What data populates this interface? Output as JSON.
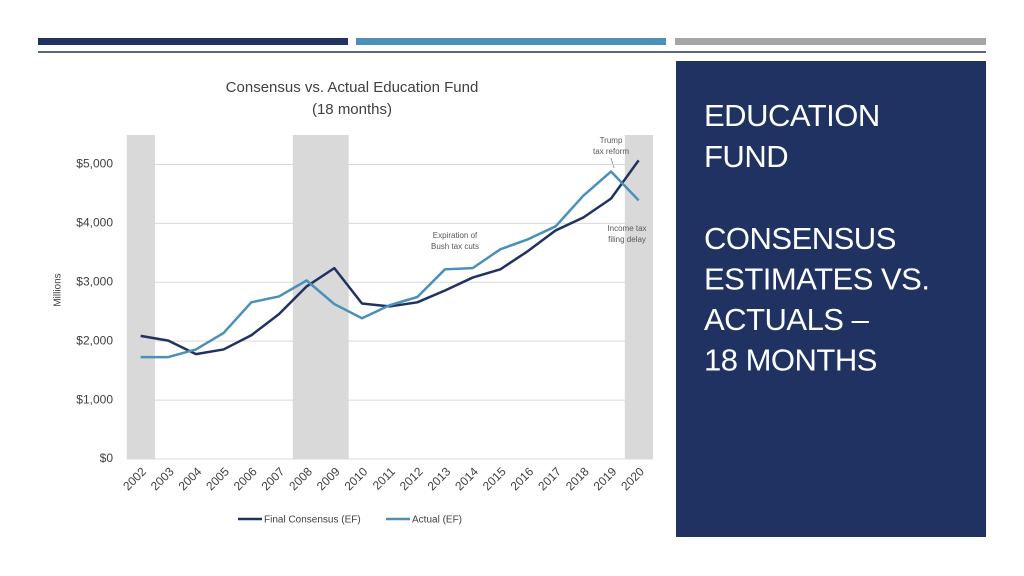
{
  "chart_data": {
    "type": "line",
    "title": "Consensus vs. Actual Education Fund",
    "subtitle": "(18 months)",
    "y_label": "Millions",
    "categories": [
      "2002",
      "2003",
      "2004",
      "2005",
      "2006",
      "2007",
      "2008",
      "2009",
      "2010",
      "2011",
      "2012",
      "2013",
      "2014",
      "2015",
      "2016",
      "2017",
      "2018",
      "2019",
      "2020"
    ],
    "series": [
      {
        "name": "Final Consensus (EF)",
        "color": "#1f3261",
        "values": [
          2090,
          2010,
          1780,
          1860,
          2100,
          2460,
          2930,
          3240,
          2640,
          2590,
          2660,
          2860,
          3080,
          3220,
          3530,
          3880,
          4100,
          4420,
          5070
        ]
      },
      {
        "name": "Actual (EF)",
        "color": "#4a90b8",
        "values": [
          1730,
          1730,
          1860,
          2140,
          2660,
          2760,
          3030,
          2630,
          2390,
          2610,
          2750,
          3220,
          3240,
          3560,
          3730,
          3950,
          4470,
          4880,
          4390
        ]
      }
    ],
    "ylim": [
      0,
      5500
    ],
    "yticks": [
      {
        "value": 0,
        "label": "$0"
      },
      {
        "value": 1000,
        "label": "$1,000"
      },
      {
        "value": 2000,
        "label": "$2,000"
      },
      {
        "value": 3000,
        "label": "$3,000"
      },
      {
        "value": 4000,
        "label": "$4,000"
      },
      {
        "value": 5000,
        "label": "$5,000"
      }
    ],
    "grid": true,
    "shaded_categories": [
      0,
      6,
      7,
      18
    ],
    "shade_color": "#d9d9d9",
    "annotations": [
      {
        "lines": [
          "Trump",
          "tax reform"
        ]
      },
      {
        "lines": [
          "Expiration of",
          "Bush tax cuts"
        ]
      },
      {
        "lines": [
          "Income tax",
          "filing delay"
        ]
      }
    ]
  },
  "slide": {
    "title_lines": [
      "EDUCATION",
      "FUND"
    ],
    "subtitle_lines": [
      "CONSENSUS",
      "ESTIMATES VS.",
      "ACTUALS –",
      "18 MONTHS"
    ]
  }
}
